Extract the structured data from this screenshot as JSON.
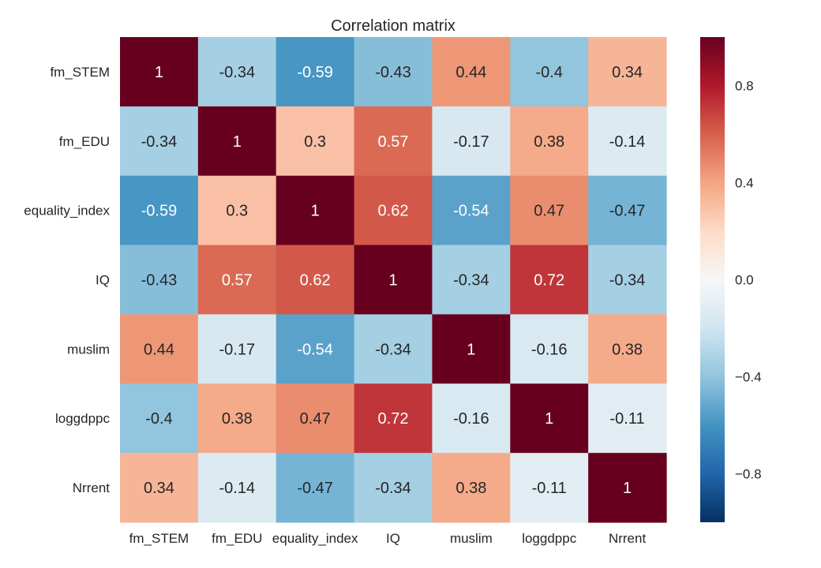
{
  "chart_data": {
    "type": "heatmap",
    "title": "Correlation matrix",
    "xlabel": "",
    "ylabel": "",
    "rows": [
      "fm_STEM",
      "fm_EDU",
      "equality_index",
      "IQ",
      "muslim",
      "loggdppc",
      "Nrrent"
    ],
    "columns": [
      "fm_STEM",
      "fm_EDU",
      "equality_index",
      "IQ",
      "muslim",
      "loggdppc",
      "Nrrent"
    ],
    "values": [
      [
        1,
        -0.34,
        -0.59,
        -0.43,
        0.44,
        -0.4,
        0.34
      ],
      [
        -0.34,
        1,
        0.3,
        0.57,
        -0.17,
        0.38,
        -0.14
      ],
      [
        -0.59,
        0.3,
        1,
        0.62,
        -0.54,
        0.47,
        -0.47
      ],
      [
        -0.43,
        0.57,
        0.62,
        1,
        -0.34,
        0.72,
        -0.34
      ],
      [
        0.44,
        -0.17,
        -0.54,
        -0.34,
        1,
        -0.16,
        0.38
      ],
      [
        -0.4,
        0.38,
        0.47,
        0.72,
        -0.16,
        1,
        -0.11
      ],
      [
        0.34,
        -0.14,
        -0.47,
        -0.34,
        0.38,
        -0.11,
        1
      ]
    ],
    "value_labels": [
      [
        "1",
        "-0.34",
        "-0.59",
        "-0.43",
        "0.44",
        "-0.4",
        "0.34"
      ],
      [
        "-0.34",
        "1",
        "0.3",
        "0.57",
        "-0.17",
        "0.38",
        "-0.14"
      ],
      [
        "-0.59",
        "0.3",
        "1",
        "0.62",
        "-0.54",
        "0.47",
        "-0.47"
      ],
      [
        "-0.43",
        "0.57",
        "0.62",
        "1",
        "-0.34",
        "0.72",
        "-0.34"
      ],
      [
        "0.44",
        "-0.17",
        "-0.54",
        "-0.34",
        "1",
        "-0.16",
        "0.38"
      ],
      [
        "-0.4",
        "0.38",
        "0.47",
        "0.72",
        "-0.16",
        "1",
        "-0.11"
      ],
      [
        "0.34",
        "-0.14",
        "-0.47",
        "-0.34",
        "0.38",
        "-0.11",
        "1"
      ]
    ],
    "colorbar": {
      "range": [
        -1,
        1
      ],
      "ticks": [
        0.8,
        0.4,
        0.0,
        -0.4,
        -0.8
      ],
      "tick_labels": [
        "0.8",
        "0.4",
        "0.0",
        "−0.4",
        "−0.8"
      ],
      "colormap": "RdBu_r",
      "color_stops": [
        "#053061",
        "#2166ac",
        "#4393c3",
        "#92c5de",
        "#d1e5f0",
        "#f7f7f7",
        "#fddbc7",
        "#f4a582",
        "#d6604d",
        "#b2182b",
        "#67001f"
      ]
    },
    "annotation_colors": {
      "dark_text": "#262626",
      "light_text": "#ffffff"
    },
    "grid": false,
    "legend": "colorbar-right"
  }
}
